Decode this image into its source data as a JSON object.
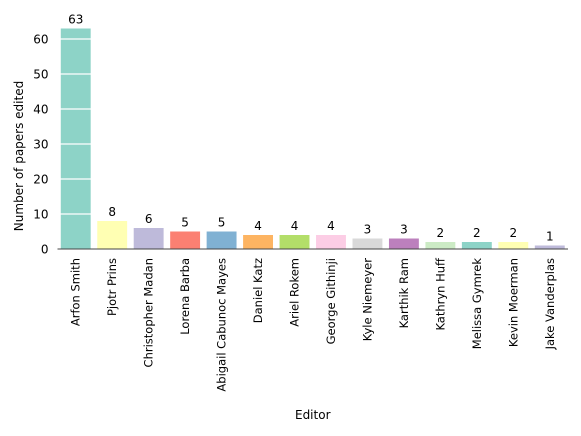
{
  "chart_data": {
    "type": "bar",
    "categories": [
      "Arfon Smith",
      "Pjotr Prins",
      "Christopher Madan",
      "Lorena Barba",
      "Abigail Cabunoc Mayes",
      "Daniel Katz",
      "Ariel Rokem",
      "George Githinji",
      "Kyle Niemeyer",
      "Karthik Ram",
      "Kathryn Huff",
      "Melissa Gymrek",
      "Kevin Moerman",
      "Jake Vanderplas"
    ],
    "values": [
      63,
      8,
      6,
      5,
      5,
      4,
      4,
      4,
      3,
      3,
      2,
      2,
      2,
      1
    ],
    "data_labels": [
      "63",
      "8",
      "6",
      "5",
      "5",
      "4",
      "4",
      "4",
      "3",
      "3",
      "2",
      "2",
      "2",
      "1"
    ],
    "colors": [
      "#8dd3c7",
      "#ffffb3",
      "#bebada",
      "#fb8072",
      "#80b1d3",
      "#fdb462",
      "#b3de69",
      "#fccde5",
      "#d9d9d9",
      "#bc80bd",
      "#ccebc5",
      "#8dd3c7",
      "#ffffb3",
      "#bebada"
    ],
    "xlabel": "Editor",
    "ylabel": "Number of papers edited",
    "yticks": [
      0,
      10,
      20,
      30,
      40,
      50,
      60
    ],
    "ytick_labels": [
      "0",
      "10",
      "20",
      "30",
      "40",
      "50",
      "60"
    ],
    "ylim": [
      0,
      66
    ],
    "grid": "horizontal white lines over bars",
    "legend": "none"
  }
}
